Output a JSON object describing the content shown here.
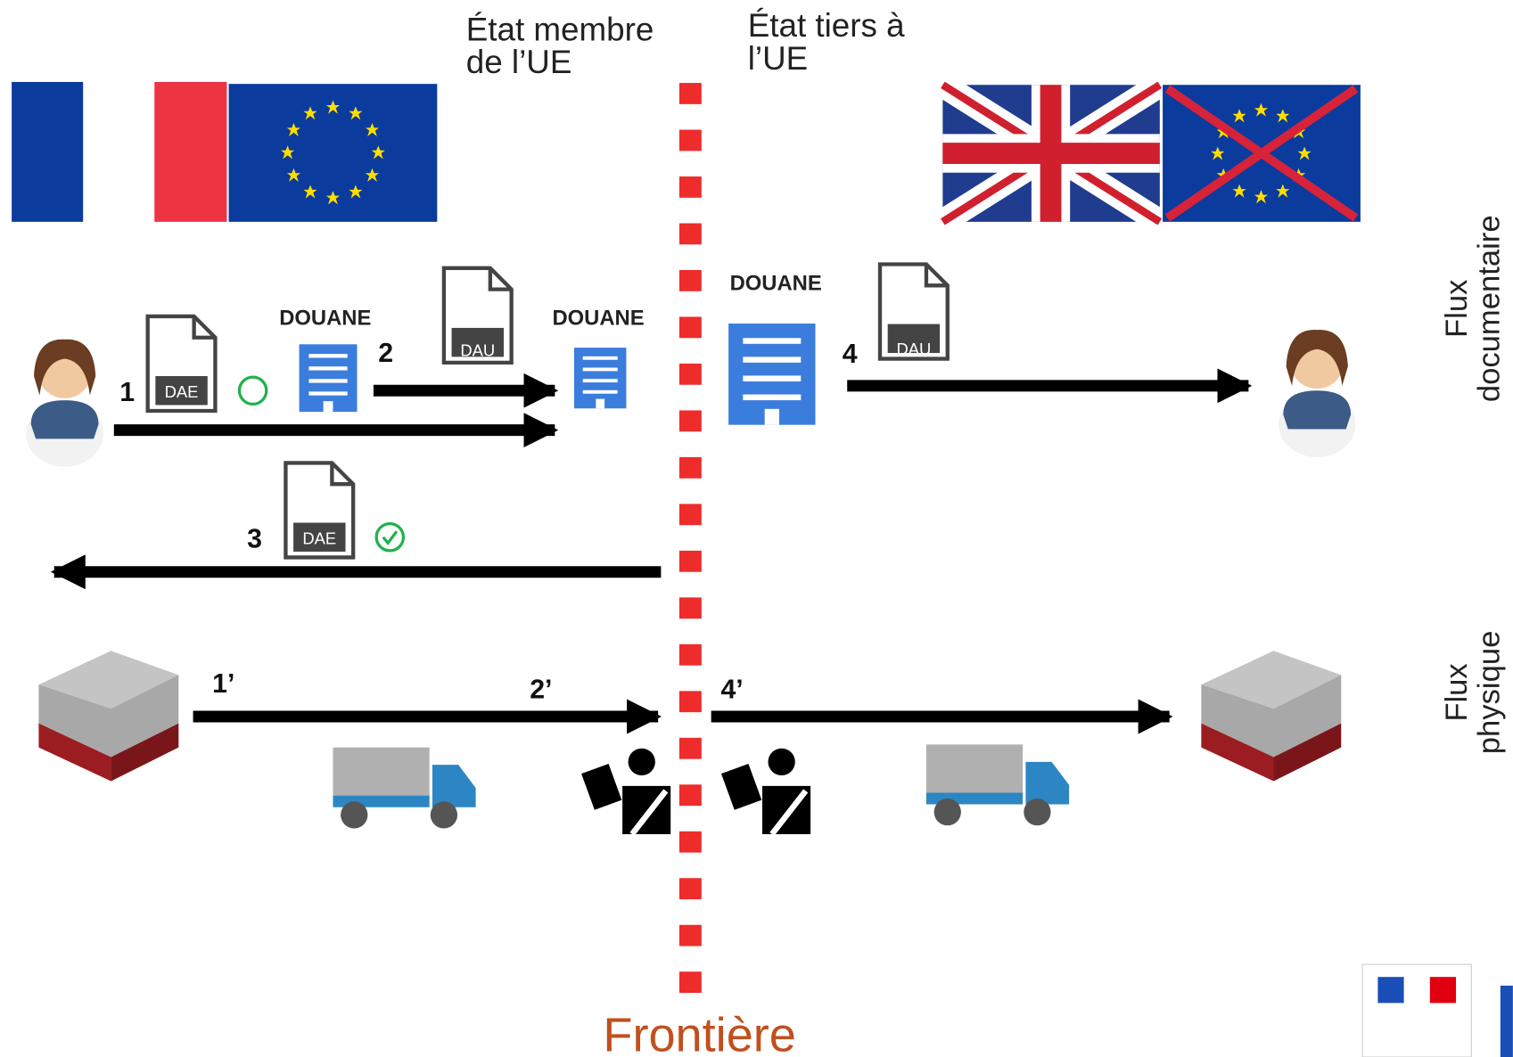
{
  "header": {
    "eu_state": [
      "État membre",
      "de l’UE"
    ],
    "third_state": [
      "État tiers à",
      "l’UE"
    ]
  },
  "customs": [
    "DOUANE",
    "DOUANE",
    "DOUANE"
  ],
  "documents": [
    "DAE",
    "DAU",
    "DAE",
    "DAU"
  ],
  "steps": {
    "document_flow": [
      "1",
      "2",
      "3",
      "4"
    ],
    "physical_flow": [
      "1’",
      "2’",
      "4’"
    ]
  },
  "side_labels": {
    "document_flow": [
      "Flux",
      "documentaire"
    ],
    "physical_flow": [
      "Flux",
      "physique"
    ]
  },
  "border": "Frontière"
}
